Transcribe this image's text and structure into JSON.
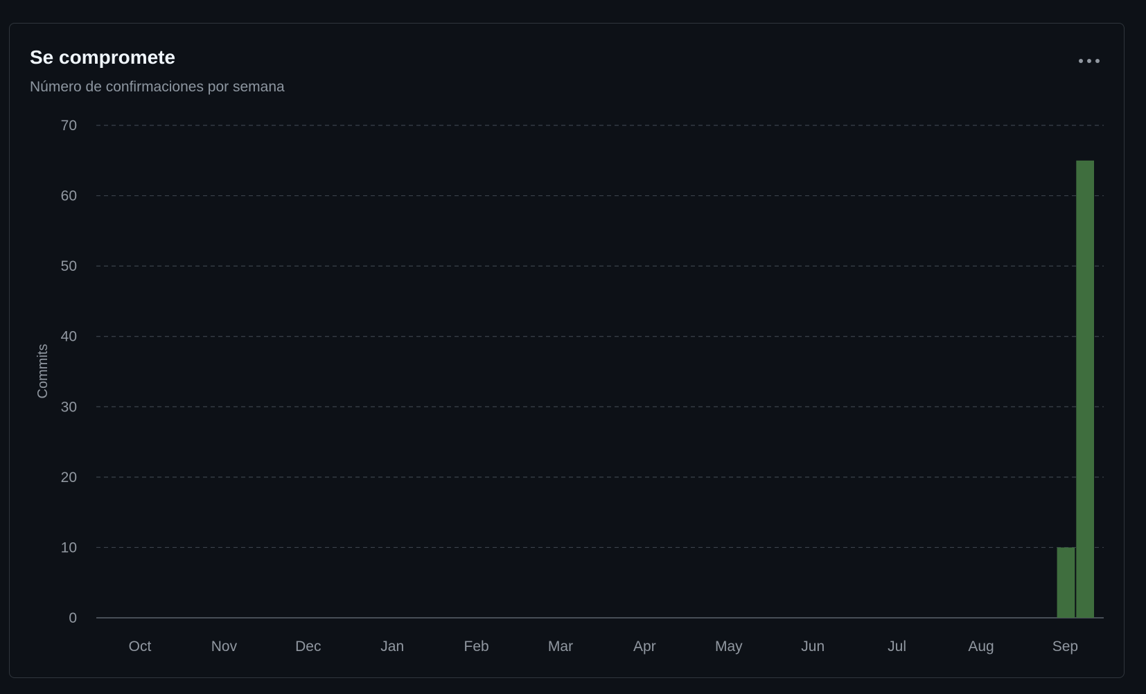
{
  "card": {
    "title": "Se compromete",
    "subtitle": "Número de confirmaciones por semana",
    "menu_icon": "kebab-horizontal-icon"
  },
  "colors": {
    "bar": "#3f6e3e",
    "grid": "#3b424b",
    "axis": "#5c646d",
    "tick_label": "#9198a1"
  },
  "chart_data": {
    "type": "bar",
    "title": "Se compromete",
    "subtitle": "Número de confirmaciones por semana",
    "xlabel": "",
    "ylabel": "Commits",
    "ylim": [
      0,
      70
    ],
    "yticks": [
      0,
      10,
      20,
      30,
      40,
      50,
      60,
      70
    ],
    "grid": true,
    "month_labels": [
      "Oct",
      "Nov",
      "Dec",
      "Jan",
      "Feb",
      "Mar",
      "Apr",
      "May",
      "Jun",
      "Jul",
      "Aug",
      "Sep"
    ],
    "weeks": 52,
    "series": [
      {
        "name": "Commits",
        "values": [
          0,
          0,
          0,
          0,
          0,
          0,
          0,
          0,
          0,
          0,
          0,
          0,
          0,
          0,
          0,
          0,
          0,
          0,
          0,
          0,
          0,
          0,
          0,
          0,
          0,
          0,
          0,
          0,
          0,
          0,
          0,
          0,
          0,
          0,
          0,
          0,
          0,
          0,
          0,
          0,
          0,
          0,
          0,
          0,
          0,
          0,
          0,
          0,
          0,
          0,
          10,
          65
        ]
      }
    ]
  }
}
